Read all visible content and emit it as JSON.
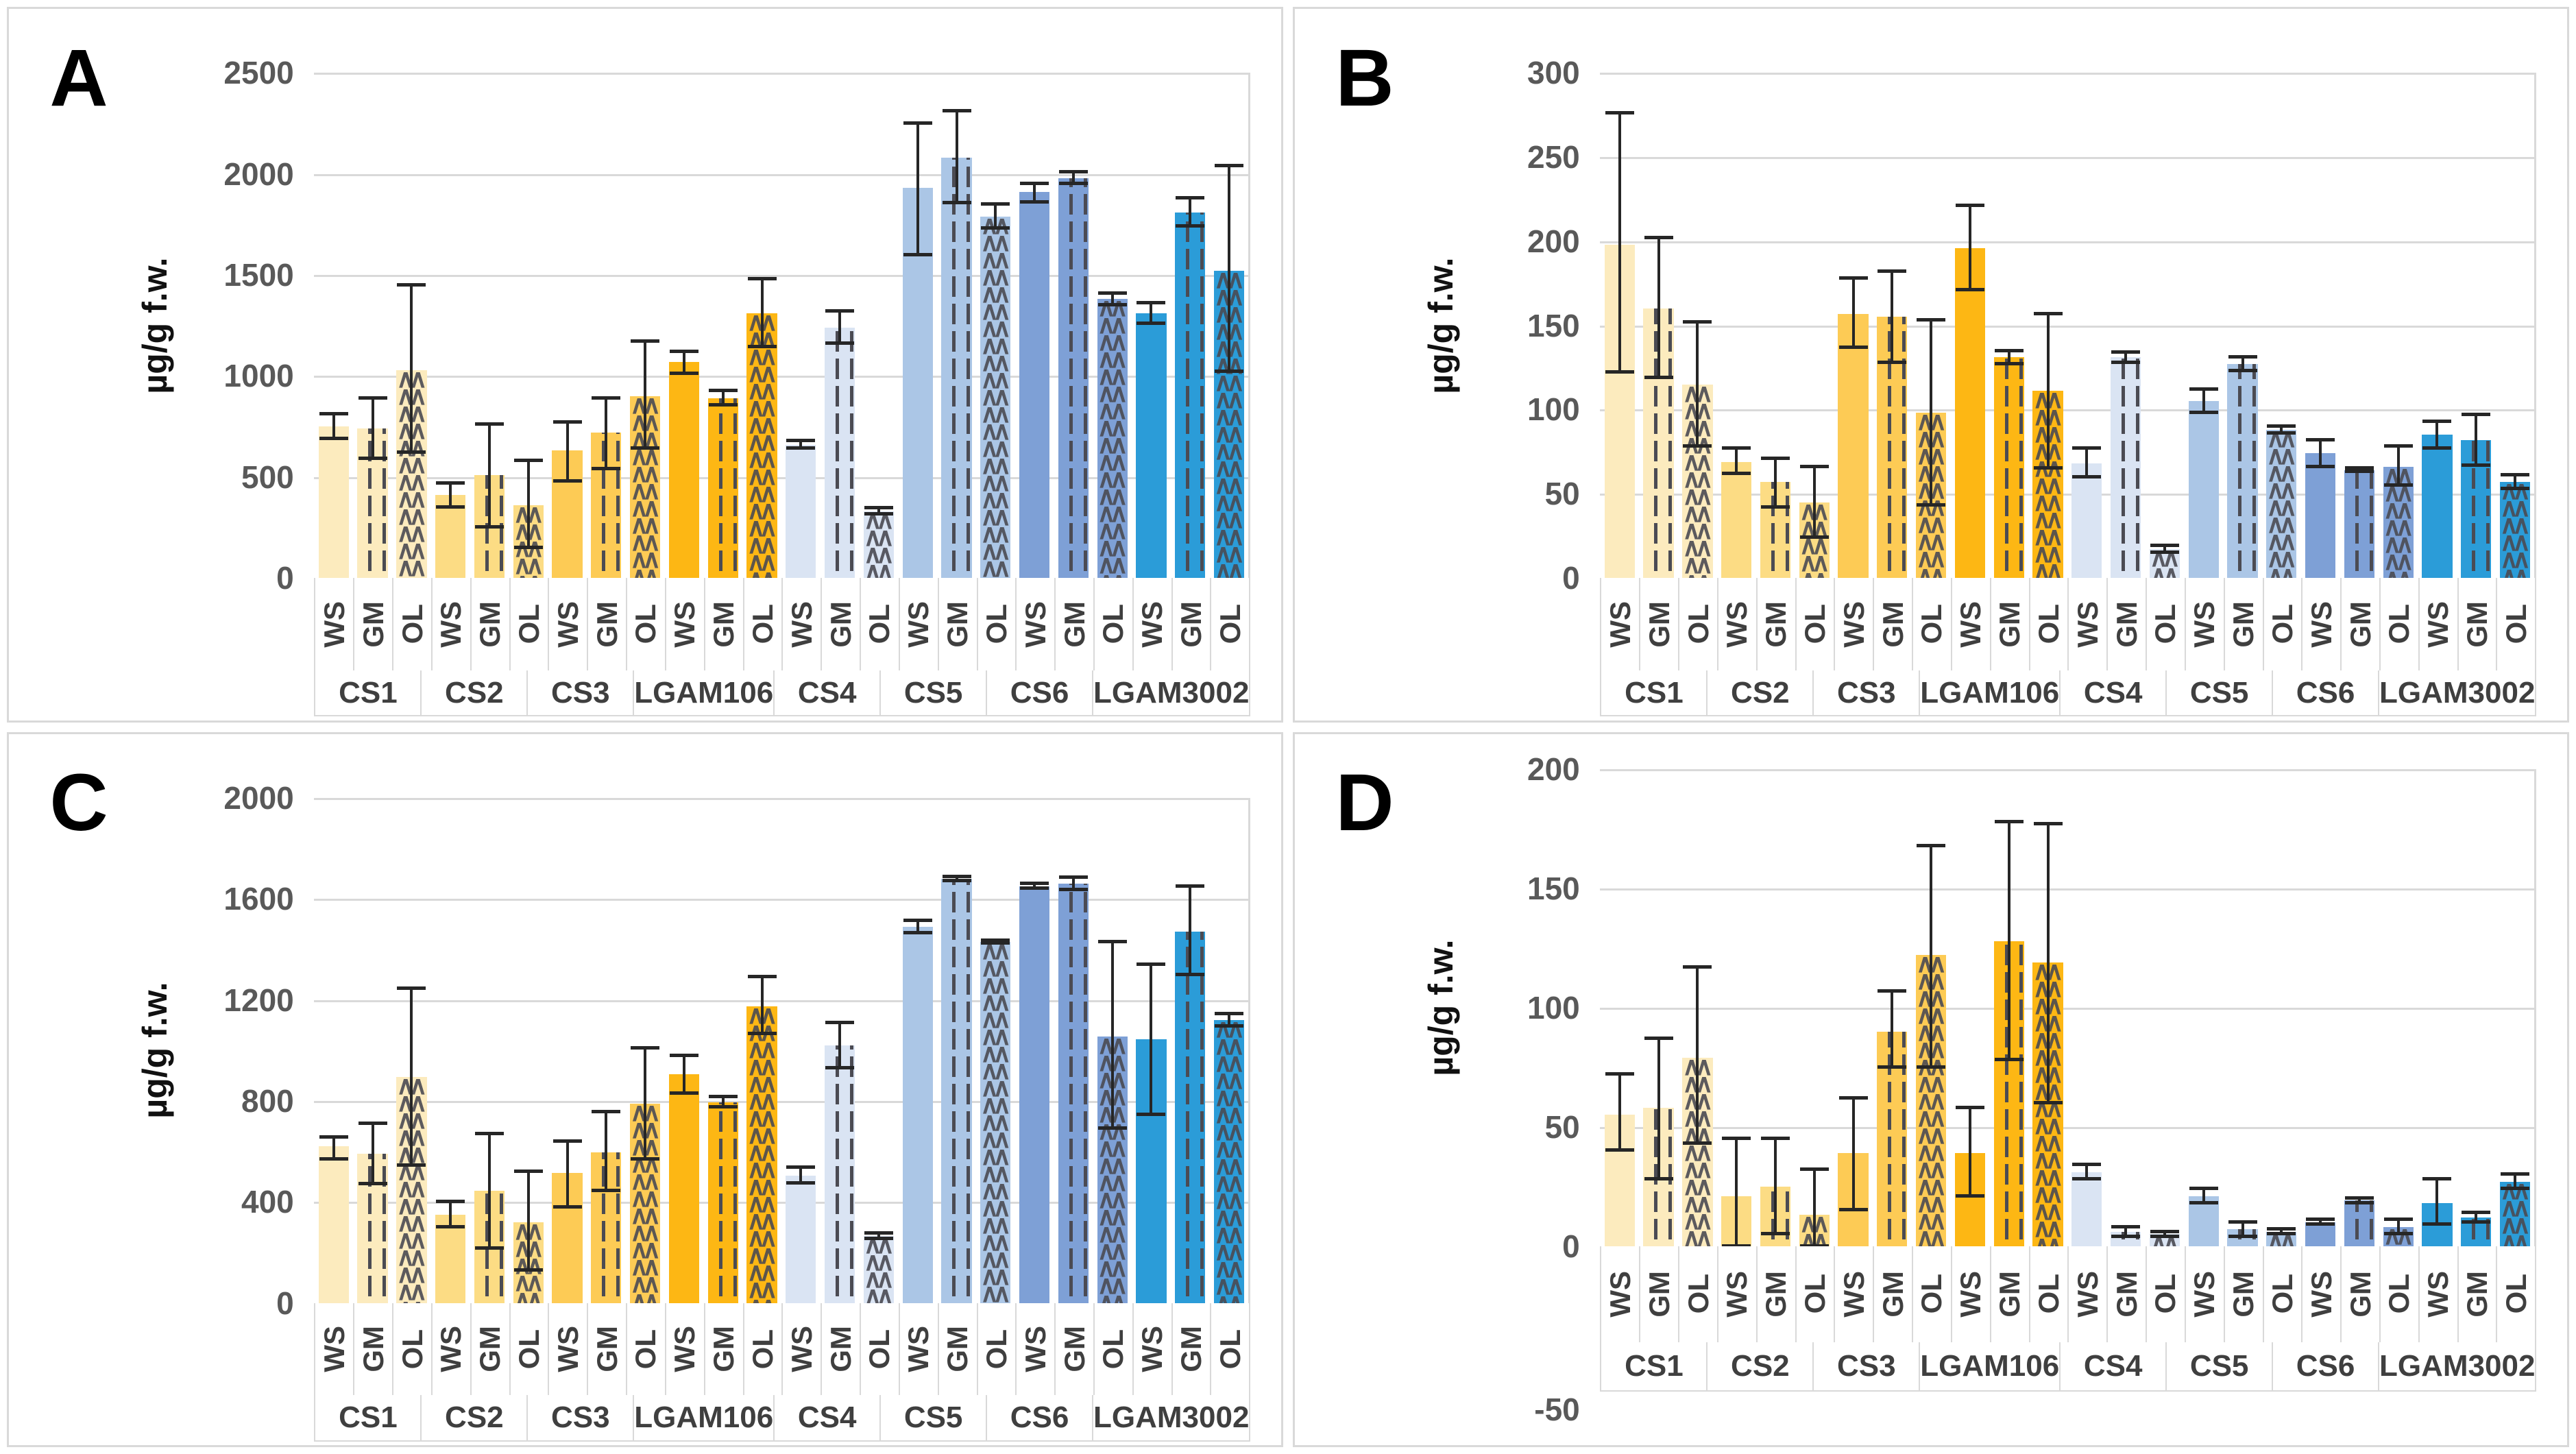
{
  "page": {
    "background": "#ffffff",
    "description": "Four-panel bar chart figure (A-D) of pigment content in microalgae strains grown on three substrates"
  },
  "samples": [
    "WS",
    "GM",
    "OL"
  ],
  "patterns": {
    "WS": "solid",
    "GM": "vertical-dashed",
    "OL": "chevron-zigzag"
  },
  "pattern_stroke": "#4B4B53",
  "colors": {
    "CS1": "#FCEBBE",
    "CS2": "#FCDC84",
    "CS3": "#FDCB55",
    "LGAM106": "#FDB714",
    "CS4": "#DAE4F3",
    "CS5": "#ABC6E6",
    "CS6": "#7EA0D6",
    "LGAM3002": "#2B9CD8"
  },
  "chart_data": [
    {
      "type": "bar",
      "letter": "A",
      "ylabel": "µg/g f.w.",
      "ylim": [
        0,
        2500
      ],
      "yticks": [
        0,
        500,
        1000,
        1500,
        2000,
        2500
      ],
      "grid": true,
      "legend": "none",
      "layout": {
        "plot_top_pct": 9,
        "baseline_pct": 80,
        "row1_h_pct": 13,
        "row2_h_pct": 6.5,
        "neg_tick_pct": null
      },
      "categories": [
        "CS1",
        "CS2",
        "CS3",
        "LGAM106",
        "CS4",
        "CS5",
        "CS6",
        "LGAM3002"
      ],
      "groups": [
        {
          "name": "CS1",
          "bars": [
            {
              "sample": "WS",
              "value": 750,
              "lo": 690,
              "hi": 810
            },
            {
              "sample": "GM",
              "value": 740,
              "lo": 590,
              "hi": 890
            },
            {
              "sample": "OL",
              "value": 1030,
              "lo": 620,
              "hi": 1450
            }
          ]
        },
        {
          "name": "CS2",
          "bars": [
            {
              "sample": "WS",
              "value": 410,
              "lo": 350,
              "hi": 470
            },
            {
              "sample": "GM",
              "value": 510,
              "lo": 250,
              "hi": 760
            },
            {
              "sample": "OL",
              "value": 360,
              "lo": 150,
              "hi": 580
            }
          ]
        },
        {
          "name": "CS3",
          "bars": [
            {
              "sample": "WS",
              "value": 630,
              "lo": 480,
              "hi": 770
            },
            {
              "sample": "GM",
              "value": 720,
              "lo": 540,
              "hi": 890
            },
            {
              "sample": "OL",
              "value": 900,
              "lo": 640,
              "hi": 1170
            }
          ]
        },
        {
          "name": "LGAM106",
          "bars": [
            {
              "sample": "WS",
              "value": 1070,
              "lo": 1010,
              "hi": 1120
            },
            {
              "sample": "GM",
              "value": 890,
              "lo": 855,
              "hi": 925
            },
            {
              "sample": "OL",
              "value": 1310,
              "lo": 1145,
              "hi": 1480
            }
          ]
        },
        {
          "name": "CS4",
          "bars": [
            {
              "sample": "WS",
              "value": 660,
              "lo": 640,
              "hi": 680
            },
            {
              "sample": "GM",
              "value": 1240,
              "lo": 1160,
              "hi": 1320
            },
            {
              "sample": "OL",
              "value": 330,
              "lo": 315,
              "hi": 345
            }
          ]
        },
        {
          "name": "CS5",
          "bars": [
            {
              "sample": "WS",
              "value": 1930,
              "lo": 1600,
              "hi": 2250
            },
            {
              "sample": "GM",
              "value": 2080,
              "lo": 1855,
              "hi": 2310
            },
            {
              "sample": "OL",
              "value": 1790,
              "lo": 1730,
              "hi": 1850
            }
          ]
        },
        {
          "name": "CS6",
          "bars": [
            {
              "sample": "WS",
              "value": 1910,
              "lo": 1860,
              "hi": 1950
            },
            {
              "sample": "GM",
              "value": 1980,
              "lo": 1950,
              "hi": 2010
            },
            {
              "sample": "OL",
              "value": 1380,
              "lo": 1350,
              "hi": 1410
            }
          ]
        },
        {
          "name": "LGAM3002",
          "bars": [
            {
              "sample": "WS",
              "value": 1310,
              "lo": 1260,
              "hi": 1360
            },
            {
              "sample": "GM",
              "value": 1810,
              "lo": 1740,
              "hi": 1880
            },
            {
              "sample": "OL",
              "value": 1520,
              "lo": 1020,
              "hi": 2040
            }
          ]
        }
      ]
    },
    {
      "type": "bar",
      "letter": "B",
      "ylabel": "µg/g f.w.",
      "ylim": [
        0,
        300
      ],
      "yticks": [
        0,
        50,
        100,
        150,
        200,
        250,
        300
      ],
      "grid": true,
      "legend": "none",
      "layout": {
        "plot_top_pct": 9,
        "baseline_pct": 80,
        "row1_h_pct": 13,
        "row2_h_pct": 6.5,
        "neg_tick_pct": null
      },
      "categories": [
        "CS1",
        "CS2",
        "CS3",
        "LGAM106",
        "CS4",
        "CS5",
        "CS6",
        "LGAM3002"
      ],
      "groups": [
        {
          "name": "CS1",
          "bars": [
            {
              "sample": "WS",
              "value": 198,
              "lo": 122,
              "hi": 276
            },
            {
              "sample": "GM",
              "value": 160,
              "lo": 119,
              "hi": 202
            },
            {
              "sample": "OL",
              "value": 115,
              "lo": 78,
              "hi": 152
            }
          ]
        },
        {
          "name": "CS2",
          "bars": [
            {
              "sample": "WS",
              "value": 69,
              "lo": 62,
              "hi": 77
            },
            {
              "sample": "GM",
              "value": 57,
              "lo": 42,
              "hi": 71
            },
            {
              "sample": "OL",
              "value": 45,
              "lo": 24,
              "hi": 66
            }
          ]
        },
        {
          "name": "CS3",
          "bars": [
            {
              "sample": "WS",
              "value": 157,
              "lo": 137,
              "hi": 178
            },
            {
              "sample": "GM",
              "value": 155,
              "lo": 128,
              "hi": 182
            },
            {
              "sample": "OL",
              "value": 98,
              "lo": 43,
              "hi": 153
            }
          ]
        },
        {
          "name": "LGAM106",
          "bars": [
            {
              "sample": "WS",
              "value": 196,
              "lo": 171,
              "hi": 221
            },
            {
              "sample": "GM",
              "value": 131,
              "lo": 127,
              "hi": 135
            },
            {
              "sample": "OL",
              "value": 111,
              "lo": 65,
              "hi": 157
            }
          ]
        },
        {
          "name": "CS4",
          "bars": [
            {
              "sample": "WS",
              "value": 68,
              "lo": 60,
              "hi": 77
            },
            {
              "sample": "GM",
              "value": 131,
              "lo": 128,
              "hi": 134
            },
            {
              "sample": "OL",
              "value": 17,
              "lo": 15,
              "hi": 19
            }
          ]
        },
        {
          "name": "CS5",
          "bars": [
            {
              "sample": "WS",
              "value": 105,
              "lo": 98,
              "hi": 112
            },
            {
              "sample": "GM",
              "value": 127,
              "lo": 123,
              "hi": 131
            },
            {
              "sample": "OL",
              "value": 88,
              "lo": 86,
              "hi": 90
            }
          ]
        },
        {
          "name": "CS6",
          "bars": [
            {
              "sample": "WS",
              "value": 74,
              "lo": 66,
              "hi": 82
            },
            {
              "sample": "GM",
              "value": 64,
              "lo": 63,
              "hi": 65
            },
            {
              "sample": "OL",
              "value": 66,
              "lo": 55,
              "hi": 78
            }
          ]
        },
        {
          "name": "LGAM3002",
          "bars": [
            {
              "sample": "WS",
              "value": 85,
              "lo": 77,
              "hi": 93
            },
            {
              "sample": "GM",
              "value": 82,
              "lo": 67,
              "hi": 97
            },
            {
              "sample": "OL",
              "value": 57,
              "lo": 53,
              "hi": 61
            }
          ]
        }
      ]
    },
    {
      "type": "bar",
      "letter": "C",
      "ylabel": "µg/g f.w.",
      "ylim": [
        0,
        2000
      ],
      "yticks": [
        0,
        400,
        800,
        1200,
        1600,
        2000
      ],
      "grid": true,
      "legend": "none",
      "layout": {
        "plot_top_pct": 9,
        "baseline_pct": 80,
        "row1_h_pct": 13,
        "row2_h_pct": 6.5,
        "neg_tick_pct": null
      },
      "categories": [
        "CS1",
        "CS2",
        "CS3",
        "LGAM106",
        "CS4",
        "CS5",
        "CS6",
        "LGAM3002"
      ],
      "groups": [
        {
          "name": "CS1",
          "bars": [
            {
              "sample": "WS",
              "value": 620,
              "lo": 570,
              "hi": 655
            },
            {
              "sample": "GM",
              "value": 590,
              "lo": 470,
              "hi": 710
            },
            {
              "sample": "OL",
              "value": 895,
              "lo": 545,
              "hi": 1245
            }
          ]
        },
        {
          "name": "CS2",
          "bars": [
            {
              "sample": "WS",
              "value": 350,
              "lo": 300,
              "hi": 400
            },
            {
              "sample": "GM",
              "value": 445,
              "lo": 215,
              "hi": 670
            },
            {
              "sample": "OL",
              "value": 320,
              "lo": 130,
              "hi": 520
            }
          ]
        },
        {
          "name": "CS3",
          "bars": [
            {
              "sample": "WS",
              "value": 515,
              "lo": 380,
              "hi": 640
            },
            {
              "sample": "GM",
              "value": 595,
              "lo": 445,
              "hi": 755
            },
            {
              "sample": "OL",
              "value": 790,
              "lo": 570,
              "hi": 1010
            }
          ]
        },
        {
          "name": "LGAM106",
          "bars": [
            {
              "sample": "WS",
              "value": 905,
              "lo": 830,
              "hi": 980
            },
            {
              "sample": "GM",
              "value": 795,
              "lo": 775,
              "hi": 815
            },
            {
              "sample": "OL",
              "value": 1175,
              "lo": 1065,
              "hi": 1290
            }
          ]
        },
        {
          "name": "CS4",
          "bars": [
            {
              "sample": "WS",
              "value": 505,
              "lo": 475,
              "hi": 535
            },
            {
              "sample": "GM",
              "value": 1020,
              "lo": 930,
              "hi": 1110
            },
            {
              "sample": "OL",
              "value": 265,
              "lo": 255,
              "hi": 275
            }
          ]
        },
        {
          "name": "CS5",
          "bars": [
            {
              "sample": "WS",
              "value": 1490,
              "lo": 1465,
              "hi": 1515
            },
            {
              "sample": "GM",
              "value": 1680,
              "lo": 1672,
              "hi": 1688
            },
            {
              "sample": "OL",
              "value": 1430,
              "lo": 1425,
              "hi": 1435
            }
          ]
        },
        {
          "name": "CS6",
          "bars": [
            {
              "sample": "WS",
              "value": 1650,
              "lo": 1640,
              "hi": 1660
            },
            {
              "sample": "GM",
              "value": 1660,
              "lo": 1635,
              "hi": 1685
            },
            {
              "sample": "OL",
              "value": 1055,
              "lo": 690,
              "hi": 1430
            }
          ]
        },
        {
          "name": "LGAM3002",
          "bars": [
            {
              "sample": "WS",
              "value": 1045,
              "lo": 745,
              "hi": 1340
            },
            {
              "sample": "GM",
              "value": 1470,
              "lo": 1300,
              "hi": 1650
            },
            {
              "sample": "OL",
              "value": 1120,
              "lo": 1095,
              "hi": 1145
            }
          ]
        }
      ]
    },
    {
      "type": "bar",
      "letter": "D",
      "ylabel": "µg/g f.w.",
      "ylim": [
        -50,
        200
      ],
      "yticks": [
        0,
        50,
        100,
        150,
        200
      ],
      "extra_neg_tick": -50,
      "grid": true,
      "legend": "none",
      "layout": {
        "plot_top_pct": 5,
        "baseline_pct": 72,
        "row1_h_pct": 13.5,
        "row2_h_pct": 7,
        "neg_tick_pct": 95
      },
      "categories": [
        "CS1",
        "CS2",
        "CS3",
        "LGAM106",
        "CS4",
        "CS5",
        "CS6",
        "LGAM3002"
      ],
      "groups": [
        {
          "name": "CS1",
          "bars": [
            {
              "sample": "WS",
              "value": 55,
              "lo": 40,
              "hi": 72
            },
            {
              "sample": "GM",
              "value": 58,
              "lo": 28,
              "hi": 87
            },
            {
              "sample": "OL",
              "value": 79,
              "lo": 43,
              "hi": 117
            }
          ]
        },
        {
          "name": "CS2",
          "bars": [
            {
              "sample": "WS",
              "value": 21,
              "lo": 0,
              "hi": 45
            },
            {
              "sample": "GM",
              "value": 25,
              "lo": 5,
              "hi": 45
            },
            {
              "sample": "OL",
              "value": 13,
              "lo": -5,
              "hi": 32
            }
          ]
        },
        {
          "name": "CS3",
          "bars": [
            {
              "sample": "WS",
              "value": 39,
              "lo": 15,
              "hi": 62
            },
            {
              "sample": "GM",
              "value": 90,
              "lo": 75,
              "hi": 107
            },
            {
              "sample": "OL",
              "value": 122,
              "lo": 75,
              "hi": 168
            }
          ]
        },
        {
          "name": "LGAM106",
          "bars": [
            {
              "sample": "WS",
              "value": 39,
              "lo": 21,
              "hi": 58
            },
            {
              "sample": "GM",
              "value": 128,
              "lo": 78,
              "hi": 178
            },
            {
              "sample": "OL",
              "value": 119,
              "lo": 60,
              "hi": 177
            }
          ]
        },
        {
          "name": "CS4",
          "bars": [
            {
              "sample": "WS",
              "value": 31,
              "lo": 28,
              "hi": 34
            },
            {
              "sample": "GM",
              "value": 6,
              "lo": 4,
              "hi": 8
            },
            {
              "sample": "OL",
              "value": 5,
              "lo": 4,
              "hi": 6
            }
          ]
        },
        {
          "name": "CS5",
          "bars": [
            {
              "sample": "WS",
              "value": 21,
              "lo": 18,
              "hi": 24
            },
            {
              "sample": "GM",
              "value": 7,
              "lo": 4,
              "hi": 10
            },
            {
              "sample": "OL",
              "value": 6,
              "lo": 5,
              "hi": 7
            }
          ]
        },
        {
          "name": "CS6",
          "bars": [
            {
              "sample": "WS",
              "value": 10,
              "lo": 9,
              "hi": 11
            },
            {
              "sample": "GM",
              "value": 19,
              "lo": 18,
              "hi": 20
            },
            {
              "sample": "OL",
              "value": 8,
              "lo": 5,
              "hi": 11
            }
          ]
        },
        {
          "name": "LGAM3002",
          "bars": [
            {
              "sample": "WS",
              "value": 18,
              "lo": 9,
              "hi": 28
            },
            {
              "sample": "GM",
              "value": 12,
              "lo": 10,
              "hi": 14
            },
            {
              "sample": "OL",
              "value": 27,
              "lo": 24,
              "hi": 30
            }
          ]
        }
      ]
    }
  ]
}
